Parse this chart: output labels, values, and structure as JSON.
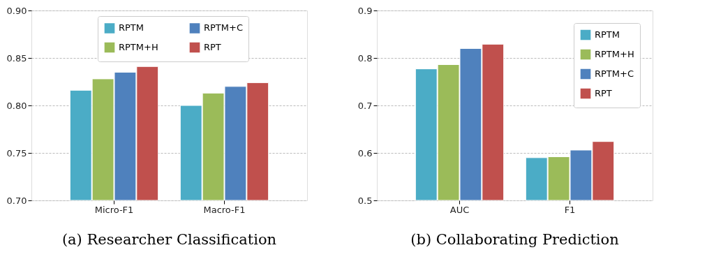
{
  "chart_data": [
    {
      "type": "bar",
      "title": "(a) Researcher Classification",
      "categories": [
        "Micro-F1",
        "Macro-F1"
      ],
      "ylim": [
        0.7,
        0.9
      ],
      "yticks": [
        {
          "value": 0.7,
          "label": "0.70"
        },
        {
          "value": 0.75,
          "label": "0.75"
        },
        {
          "value": 0.8,
          "label": "0.80"
        },
        {
          "value": 0.85,
          "label": "0.85"
        },
        {
          "value": 0.9,
          "label": "0.90"
        }
      ],
      "grid": "y",
      "legend": "top",
      "series": [
        {
          "name": "RPTM",
          "color": "#4bacc6",
          "values": [
            0.816,
            0.8
          ]
        },
        {
          "name": "RPTM+H",
          "color": "#9bbb59",
          "values": [
            0.828,
            0.813
          ]
        },
        {
          "name": "RPTM+C",
          "color": "#4f81bd",
          "values": [
            0.835,
            0.82
          ]
        },
        {
          "name": "RPT",
          "color": "#c0504d",
          "values": [
            0.841,
            0.824
          ]
        }
      ]
    },
    {
      "type": "bar",
      "title": "(b) Collaborating Prediction",
      "categories": [
        "AUC",
        "F1"
      ],
      "ylim": [
        0.5,
        0.9
      ],
      "yticks": [
        0.5,
        0.6,
        0.7,
        0.8,
        0.9
      ],
      "grid": "y",
      "legend": "top right",
      "series": [
        {
          "name": "RPTM",
          "color": "#4bacc6",
          "values": [
            0.777,
            0.59
          ]
        },
        {
          "name": "RPTM+H",
          "color": "#9bbb59",
          "values": [
            0.786,
            0.592
          ]
        },
        {
          "name": "RPTM+C",
          "color": "#4f81bd",
          "values": [
            0.82,
            0.606
          ]
        },
        {
          "name": "RPT",
          "color": "#c0504d",
          "values": [
            0.829,
            0.624
          ]
        }
      ]
    }
  ]
}
